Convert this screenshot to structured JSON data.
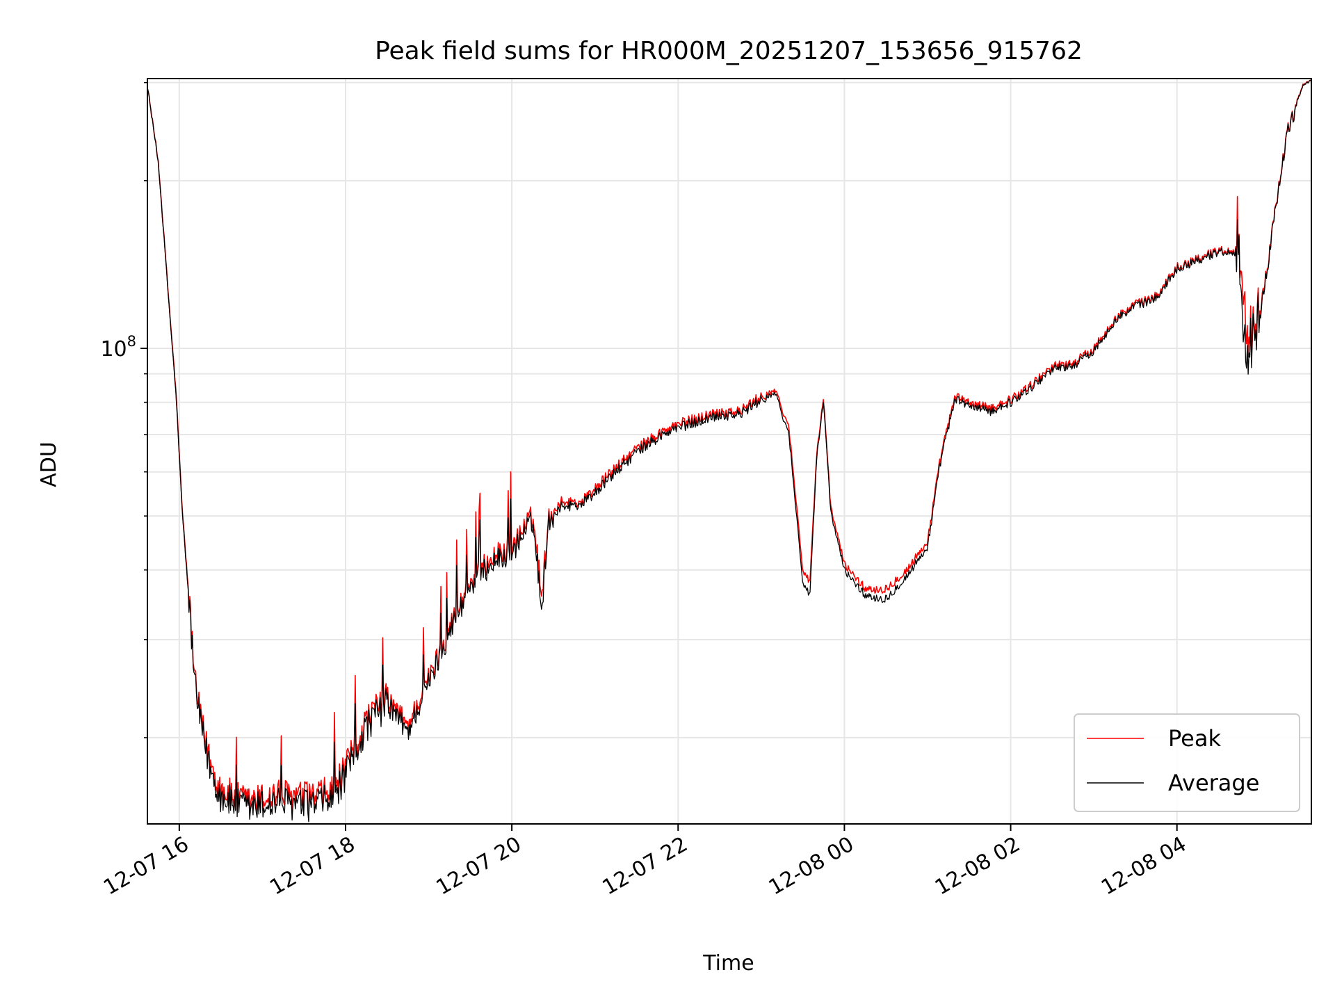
{
  "chart_data": {
    "type": "line",
    "title": "Peak field sums for HR000M_20251207_153656_915762",
    "xlabel": "Time",
    "ylabel": "ADU",
    "yscale": "log",
    "grid": true,
    "legend_placement": "lower-right",
    "xlim": [
      "2025-12-07 15:37",
      "2025-12-08 05:37"
    ],
    "ylim": [
      14000000,
      305000000
    ],
    "x_ticks": [
      {
        "value": "2025-12-07 16:00",
        "label": "12-07 16"
      },
      {
        "value": "2025-12-07 18:00",
        "label": "12-07 18"
      },
      {
        "value": "2025-12-07 20:00",
        "label": "12-07 20"
      },
      {
        "value": "2025-12-07 22:00",
        "label": "12-07 22"
      },
      {
        "value": "2025-12-08 00:00",
        "label": "12-08 00"
      },
      {
        "value": "2025-12-08 02:00",
        "label": "12-08 02"
      },
      {
        "value": "2025-12-08 04:00",
        "label": "12-08 04"
      }
    ],
    "y_ticks": [
      {
        "value": 100000000,
        "label": "10",
        "exponent": "8"
      }
    ],
    "x": [
      "2025-12-07 15:37",
      "2025-12-07 15:45",
      "2025-12-07 15:53",
      "2025-12-07 15:58",
      "2025-12-07 16:02",
      "2025-12-07 16:08",
      "2025-12-07 16:12",
      "2025-12-07 16:18",
      "2025-12-07 16:24",
      "2025-12-07 16:30",
      "2025-12-07 16:40",
      "2025-12-07 16:50",
      "2025-12-07 17:00",
      "2025-12-07 17:10",
      "2025-12-07 17:20",
      "2025-12-07 17:30",
      "2025-12-07 17:40",
      "2025-12-07 17:50",
      "2025-12-07 18:00",
      "2025-12-07 18:15",
      "2025-12-07 18:30",
      "2025-12-07 18:45",
      "2025-12-07 19:00",
      "2025-12-07 19:15",
      "2025-12-07 19:30",
      "2025-12-07 19:45",
      "2025-12-07 20:00",
      "2025-12-07 20:15",
      "2025-12-07 20:22",
      "2025-12-07 20:26",
      "2025-12-07 20:35",
      "2025-12-07 20:50",
      "2025-12-07 21:00",
      "2025-12-07 21:15",
      "2025-12-07 21:30",
      "2025-12-07 21:45",
      "2025-12-07 22:00",
      "2025-12-07 22:15",
      "2025-12-07 22:30",
      "2025-12-07 22:45",
      "2025-12-07 23:00",
      "2025-12-07 23:10",
      "2025-12-07 23:20",
      "2025-12-07 23:30",
      "2025-12-07 23:35",
      "2025-12-07 23:40",
      "2025-12-07 23:45",
      "2025-12-07 23:50",
      "2025-12-08 00:00",
      "2025-12-08 00:15",
      "2025-12-08 00:30",
      "2025-12-08 00:45",
      "2025-12-08 01:00",
      "2025-12-08 01:10",
      "2025-12-08 01:20",
      "2025-12-08 01:30",
      "2025-12-08 01:45",
      "2025-12-08 02:00",
      "2025-12-08 02:15",
      "2025-12-08 02:30",
      "2025-12-08 02:45",
      "2025-12-08 03:00",
      "2025-12-08 03:15",
      "2025-12-08 03:30",
      "2025-12-08 03:45",
      "2025-12-08 04:00",
      "2025-12-08 04:15",
      "2025-12-08 04:30",
      "2025-12-08 04:45",
      "2025-12-08 04:48",
      "2025-12-08 04:51",
      "2025-12-08 04:55",
      "2025-12-08 05:00",
      "2025-12-08 05:05",
      "2025-12-08 05:10",
      "2025-12-08 05:20",
      "2025-12-08 05:30",
      "2025-12-08 05:37"
    ],
    "series": [
      {
        "name": "Peak",
        "color": "#ff0000",
        "values": [
          296000000,
          215000000,
          117000000,
          81000000,
          52000000,
          33000000,
          24200000,
          20000000,
          17500000,
          16200000,
          15600000,
          15300000,
          15500000,
          15800000,
          15700000,
          15600000,
          15700000,
          16000000,
          17500000,
          21500000,
          23500000,
          21000000,
          25500000,
          31500000,
          38000000,
          42000000,
          44000000,
          50000000,
          36000000,
          49000000,
          53000000,
          53000000,
          56000000,
          61000000,
          66000000,
          70000000,
          73000000,
          75000000,
          77000000,
          77000000,
          82000000,
          84000000,
          72000000,
          40000000,
          38000000,
          64000000,
          82000000,
          52000000,
          41000000,
          37000000,
          37000000,
          40000000,
          45000000,
          65000000,
          82000000,
          80000000,
          78000000,
          81000000,
          86000000,
          93000000,
          94000000,
          100000000,
          113000000,
          120000000,
          124000000,
          140000000,
          145000000,
          150000000,
          150000000,
          118000000,
          108000000,
          107000000,
          120000000,
          140000000,
          170000000,
          245000000,
          295000000,
          305000000
        ]
      },
      {
        "name": "Average",
        "color": "#000000",
        "values": [
          296000000,
          214000000,
          116000000,
          80000000,
          51500000,
          32500000,
          23800000,
          19500000,
          17000000,
          15700000,
          15200000,
          14900000,
          15100000,
          15300000,
          15200000,
          15100000,
          15200000,
          15500000,
          17000000,
          21000000,
          23000000,
          20500000,
          25000000,
          31000000,
          37500000,
          41000000,
          43000000,
          49000000,
          34000000,
          48500000,
          52000000,
          52500000,
          55000000,
          60000000,
          65000000,
          69000000,
          72000000,
          74000000,
          76000000,
          76000000,
          81000000,
          83000000,
          70000000,
          38000000,
          36000000,
          63000000,
          81000000,
          51000000,
          40000000,
          36000000,
          35500000,
          39000000,
          44000000,
          64000000,
          81000000,
          79000000,
          77000000,
          80000000,
          85000000,
          92000000,
          93000000,
          99000000,
          112000000,
          119000000,
          123000000,
          139000000,
          144000000,
          149000000,
          149000000,
          100000000,
          100000000,
          104000000,
          118000000,
          139000000,
          169000000,
          244000000,
          294000000,
          305000000
        ]
      }
    ]
  }
}
